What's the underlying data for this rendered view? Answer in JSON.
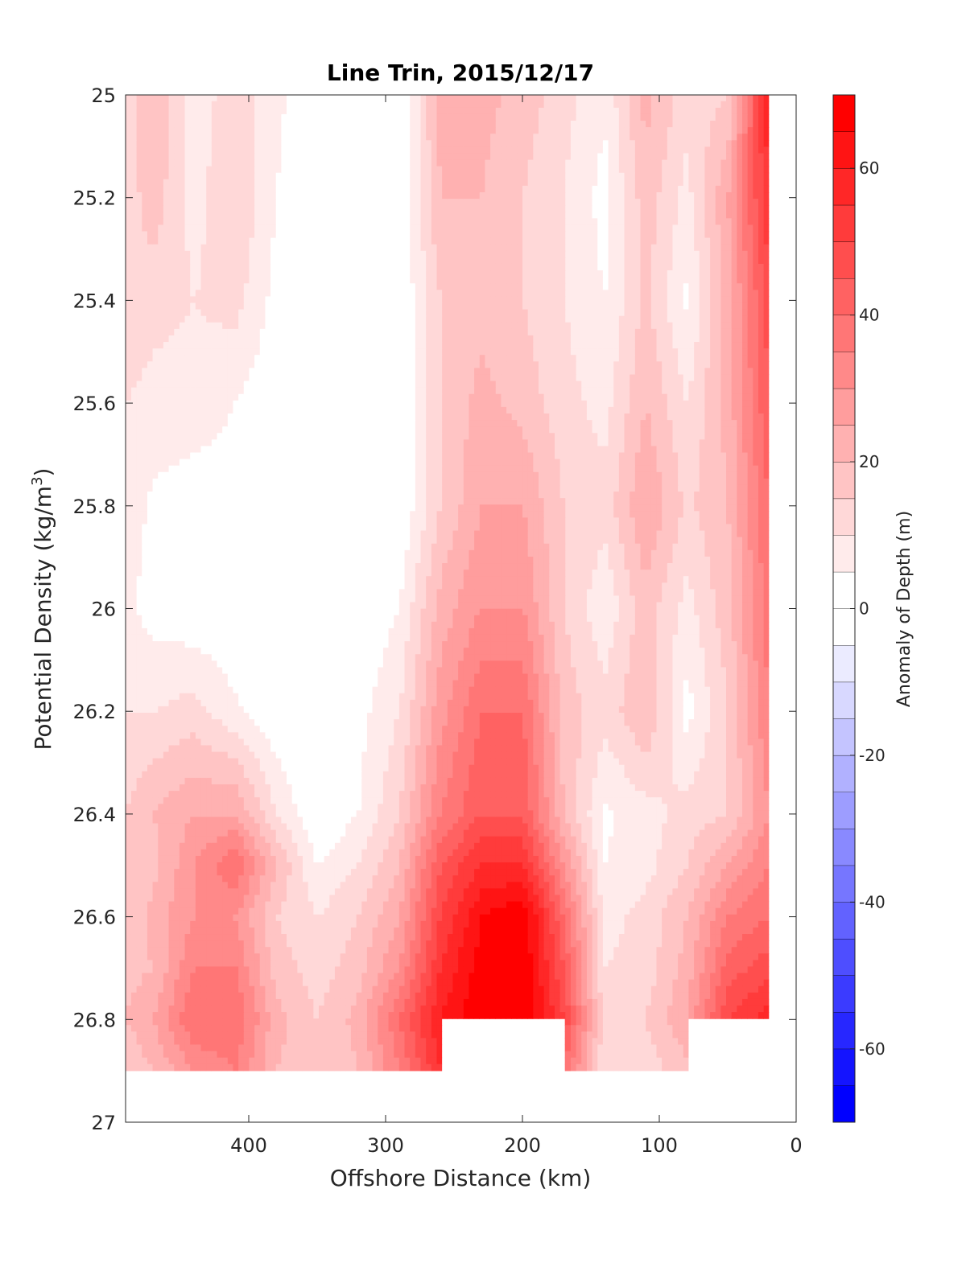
{
  "chart_data": {
    "type": "heatmap",
    "subtype": "filled-contour",
    "title": "Line Trin, 2015/12/17",
    "xlabel": "Offshore Distance (km)",
    "ylabel_prefix": "Potential Density (kg/m",
    "ylabel_sup": "3",
    "ylabel_suffix": ")",
    "x_direction": "reversed",
    "y_direction": "reversed",
    "xlim": [
      490,
      0
    ],
    "ylim": [
      25,
      27
    ],
    "xticks": [
      {
        "value": 400,
        "label": "400"
      },
      {
        "value": 300,
        "label": "300"
      },
      {
        "value": 200,
        "label": "200"
      },
      {
        "value": 100,
        "label": "100"
      },
      {
        "value": 0,
        "label": "0"
      }
    ],
    "yticks": [
      {
        "value": 25,
        "label": "25"
      },
      {
        "value": 25.2,
        "label": "25.2"
      },
      {
        "value": 25.4,
        "label": "25.4"
      },
      {
        "value": 25.6,
        "label": "25.6"
      },
      {
        "value": 25.8,
        "label": "25.8"
      },
      {
        "value": 26,
        "label": "26"
      },
      {
        "value": 26.2,
        "label": "26.2"
      },
      {
        "value": 26.4,
        "label": "26.4"
      },
      {
        "value": 26.6,
        "label": "26.6"
      },
      {
        "value": 26.8,
        "label": "26.8"
      },
      {
        "value": 27,
        "label": "27"
      }
    ],
    "colorbar": {
      "label": "Anomaly of Depth (m)",
      "range": [
        -70,
        70
      ],
      "level_step": 5,
      "ticks": [
        {
          "value": 60,
          "label": "60"
        },
        {
          "value": 40,
          "label": "40"
        },
        {
          "value": 20,
          "label": "20"
        },
        {
          "value": 0,
          "label": "0"
        },
        {
          "value": -20,
          "label": "-20"
        },
        {
          "value": -40,
          "label": "-40"
        },
        {
          "value": -60,
          "label": "-60"
        }
      ],
      "colormap": "blue-white-red",
      "negative_color": "#0000ff",
      "positive_color": "#ff0000"
    },
    "x_grid": [
      20,
      50,
      80,
      110,
      140,
      170,
      200,
      230,
      260,
      290,
      320,
      350,
      380,
      410,
      440,
      470,
      490
    ],
    "y_grid": [
      25.0,
      25.2,
      25.4,
      25.6,
      25.8,
      26.0,
      26.2,
      26.4,
      26.5,
      26.6,
      26.7,
      26.8,
      26.9
    ],
    "z": [
      [
        60,
        15,
        12,
        22,
        6,
        12,
        18,
        22,
        22,
        0,
        3,
        2,
        6,
        14,
        6,
        20,
        12
      ],
      [
        55,
        25,
        8,
        18,
        3,
        10,
        15,
        20,
        20,
        0,
        2,
        0,
        5,
        15,
        8,
        18,
        12
      ],
      [
        48,
        22,
        4,
        16,
        5,
        10,
        15,
        18,
        15,
        0,
        0,
        0,
        3,
        12,
        10,
        12,
        15
      ],
      [
        45,
        22,
        10,
        20,
        8,
        12,
        18,
        22,
        15,
        0,
        0,
        -2,
        1,
        5,
        8,
        8,
        10
      ],
      [
        40,
        20,
        14,
        25,
        12,
        15,
        25,
        25,
        15,
        0,
        1,
        -5,
        0,
        2,
        2,
        4,
        8
      ],
      [
        38,
        18,
        8,
        18,
        6,
        15,
        30,
        30,
        22,
        5,
        0,
        -4,
        0,
        0,
        1,
        3,
        6
      ],
      [
        35,
        15,
        3,
        20,
        12,
        18,
        40,
        40,
        28,
        10,
        3,
        -1,
        1,
        6,
        12,
        10,
        10
      ],
      [
        30,
        15,
        12,
        8,
        4,
        20,
        45,
        45,
        35,
        15,
        5,
        0,
        10,
        25,
        25,
        20,
        15
      ],
      [
        35,
        25,
        15,
        8,
        5,
        30,
        55,
        55,
        45,
        20,
        10,
        5,
        20,
        40,
        30,
        18,
        15
      ],
      [
        40,
        35,
        20,
        12,
        8,
        40,
        70,
        65,
        50,
        25,
        15,
        10,
        15,
        30,
        30,
        22,
        15
      ],
      [
        48,
        42,
        22,
        12,
        10,
        45,
        70,
        68,
        55,
        30,
        18,
        12,
        18,
        35,
        35,
        20,
        18
      ],
      [
        58,
        50,
        25,
        15,
        12,
        50,
        72,
        70,
        60,
        40,
        22,
        15,
        22,
        40,
        40,
        25,
        20
      ],
      [
        null,
        null,
        18,
        12,
        10,
        40,
        null,
        null,
        55,
        35,
        20,
        15,
        20,
        35,
        30,
        20,
        15
      ]
    ]
  }
}
